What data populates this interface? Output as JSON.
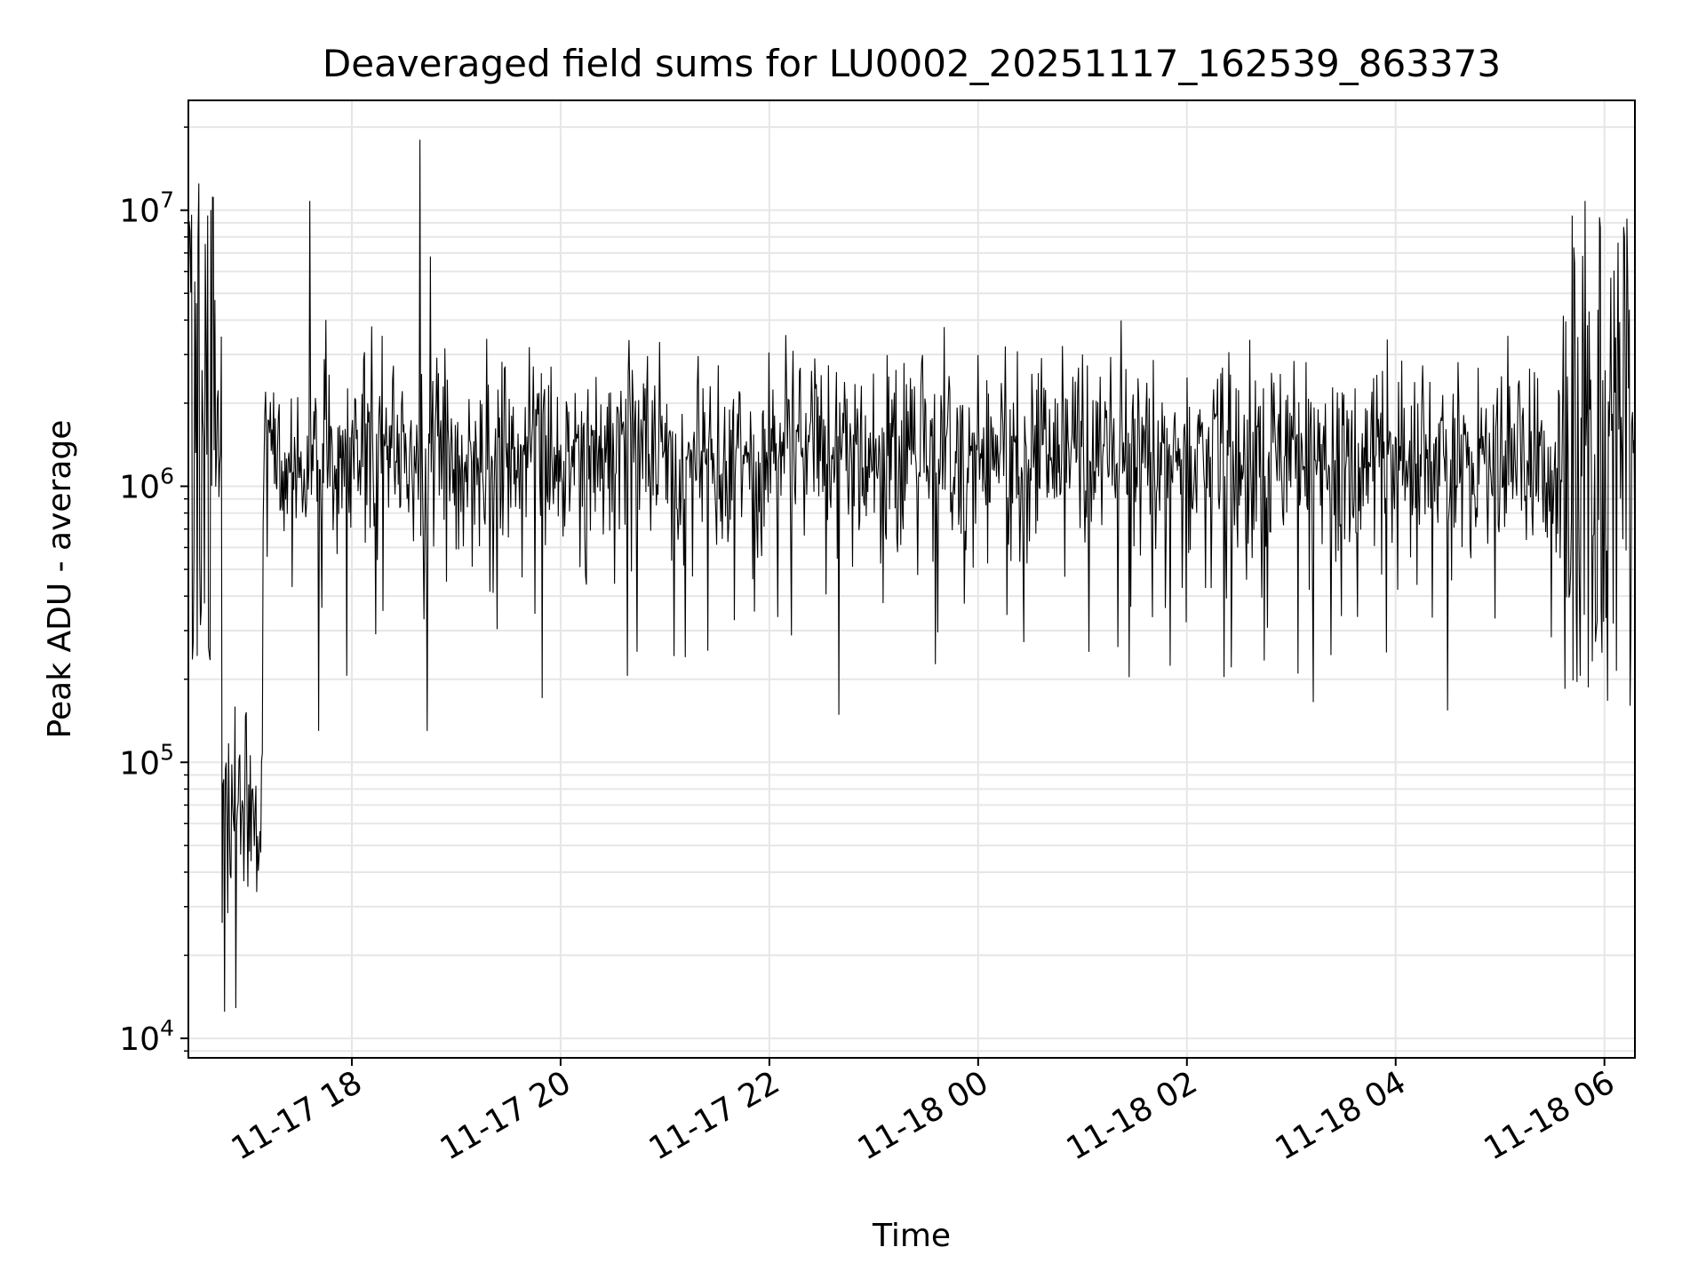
{
  "chart_data": {
    "type": "line",
    "title": "Deaveraged field sums for LU0002_20251117_162539_863373",
    "xlabel": "Time",
    "ylabel": "Peak ADU - average",
    "yscale": "log",
    "ylim": [
      8500,
      25000000
    ],
    "xlim_hours_from_2025-11-17_00:00": [
      16.434,
      30.292
    ],
    "xticks": [
      {
        "label": "11-17 18",
        "hours": 18
      },
      {
        "label": "11-17 20",
        "hours": 20
      },
      {
        "label": "11-17 22",
        "hours": 22
      },
      {
        "label": "11-18 00",
        "hours": 24
      },
      {
        "label": "11-18 02",
        "hours": 26
      },
      {
        "label": "11-18 04",
        "hours": 28
      },
      {
        "label": "11-18 06",
        "hours": 30
      }
    ],
    "yticks": [
      {
        "base": "10",
        "exp": "4",
        "value": 10000
      },
      {
        "base": "10",
        "exp": "5",
        "value": 100000
      },
      {
        "base": "10",
        "exp": "6",
        "value": 1000000
      },
      {
        "base": "10",
        "exp": "7",
        "value": 10000000
      }
    ],
    "grid": true,
    "line_color": "#000000",
    "grid_color": "#e6e6e6",
    "series": [
      {
        "name": "deaveraged field sum",
        "x_start_hours": 16.434,
        "x_end_hours": 30.292,
        "n_points": 1800,
        "typical_range": [
          350000,
          2500000
        ],
        "typical_level": 1300000,
        "features": [
          {
            "t_start": 16.434,
            "t_end": 16.75,
            "kind": "high spikes",
            "max": 12500000,
            "min": 200000
          },
          {
            "t_start": 16.75,
            "t_end": 17.15,
            "kind": "deep dip",
            "min": 12500,
            "typical": 60000
          },
          {
            "t_hours": 16.78,
            "kind": "minimum",
            "value": 12500
          },
          {
            "t_hours": 17.6,
            "kind": "spike",
            "value": 10800000
          },
          {
            "t_hours": 17.68,
            "kind": "dip",
            "value": 130000
          },
          {
            "t_hours": 18.65,
            "kind": "spike",
            "value": 18000000
          },
          {
            "t_hours": 18.72,
            "kind": "dip",
            "value": 130000
          },
          {
            "t_hours": 18.75,
            "kind": "spike",
            "value": 6800000
          },
          {
            "t_hours": 25.0,
            "kind": "spike",
            "value": 3000000
          },
          {
            "t_start": 29.6,
            "t_end": 30.292,
            "kind": "high spikes",
            "max": 10800000,
            "min": 160000
          }
        ]
      }
    ]
  }
}
